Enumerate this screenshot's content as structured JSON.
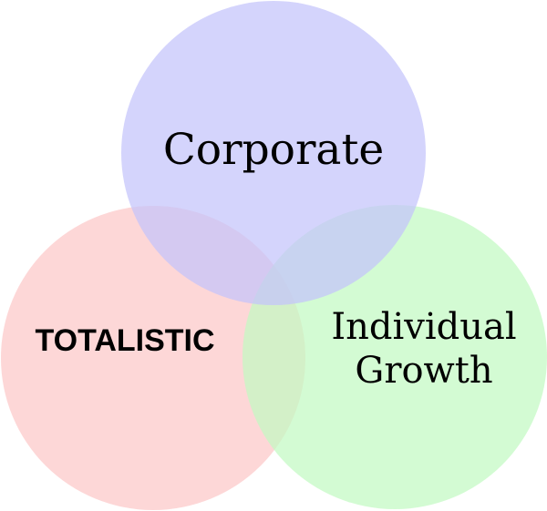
{
  "diagram": {
    "type": "venn",
    "circles": [
      {
        "id": "top",
        "label_lines": [
          "Corporate"
        ],
        "color": "#c4c4fb"
      },
      {
        "id": "left",
        "label_lines": [
          "TOTALISTIC"
        ],
        "color": "#fcc8c8"
      },
      {
        "id": "right",
        "label_lines": [
          "Individual",
          "Growth"
        ],
        "color": "#c2fac2"
      }
    ]
  }
}
